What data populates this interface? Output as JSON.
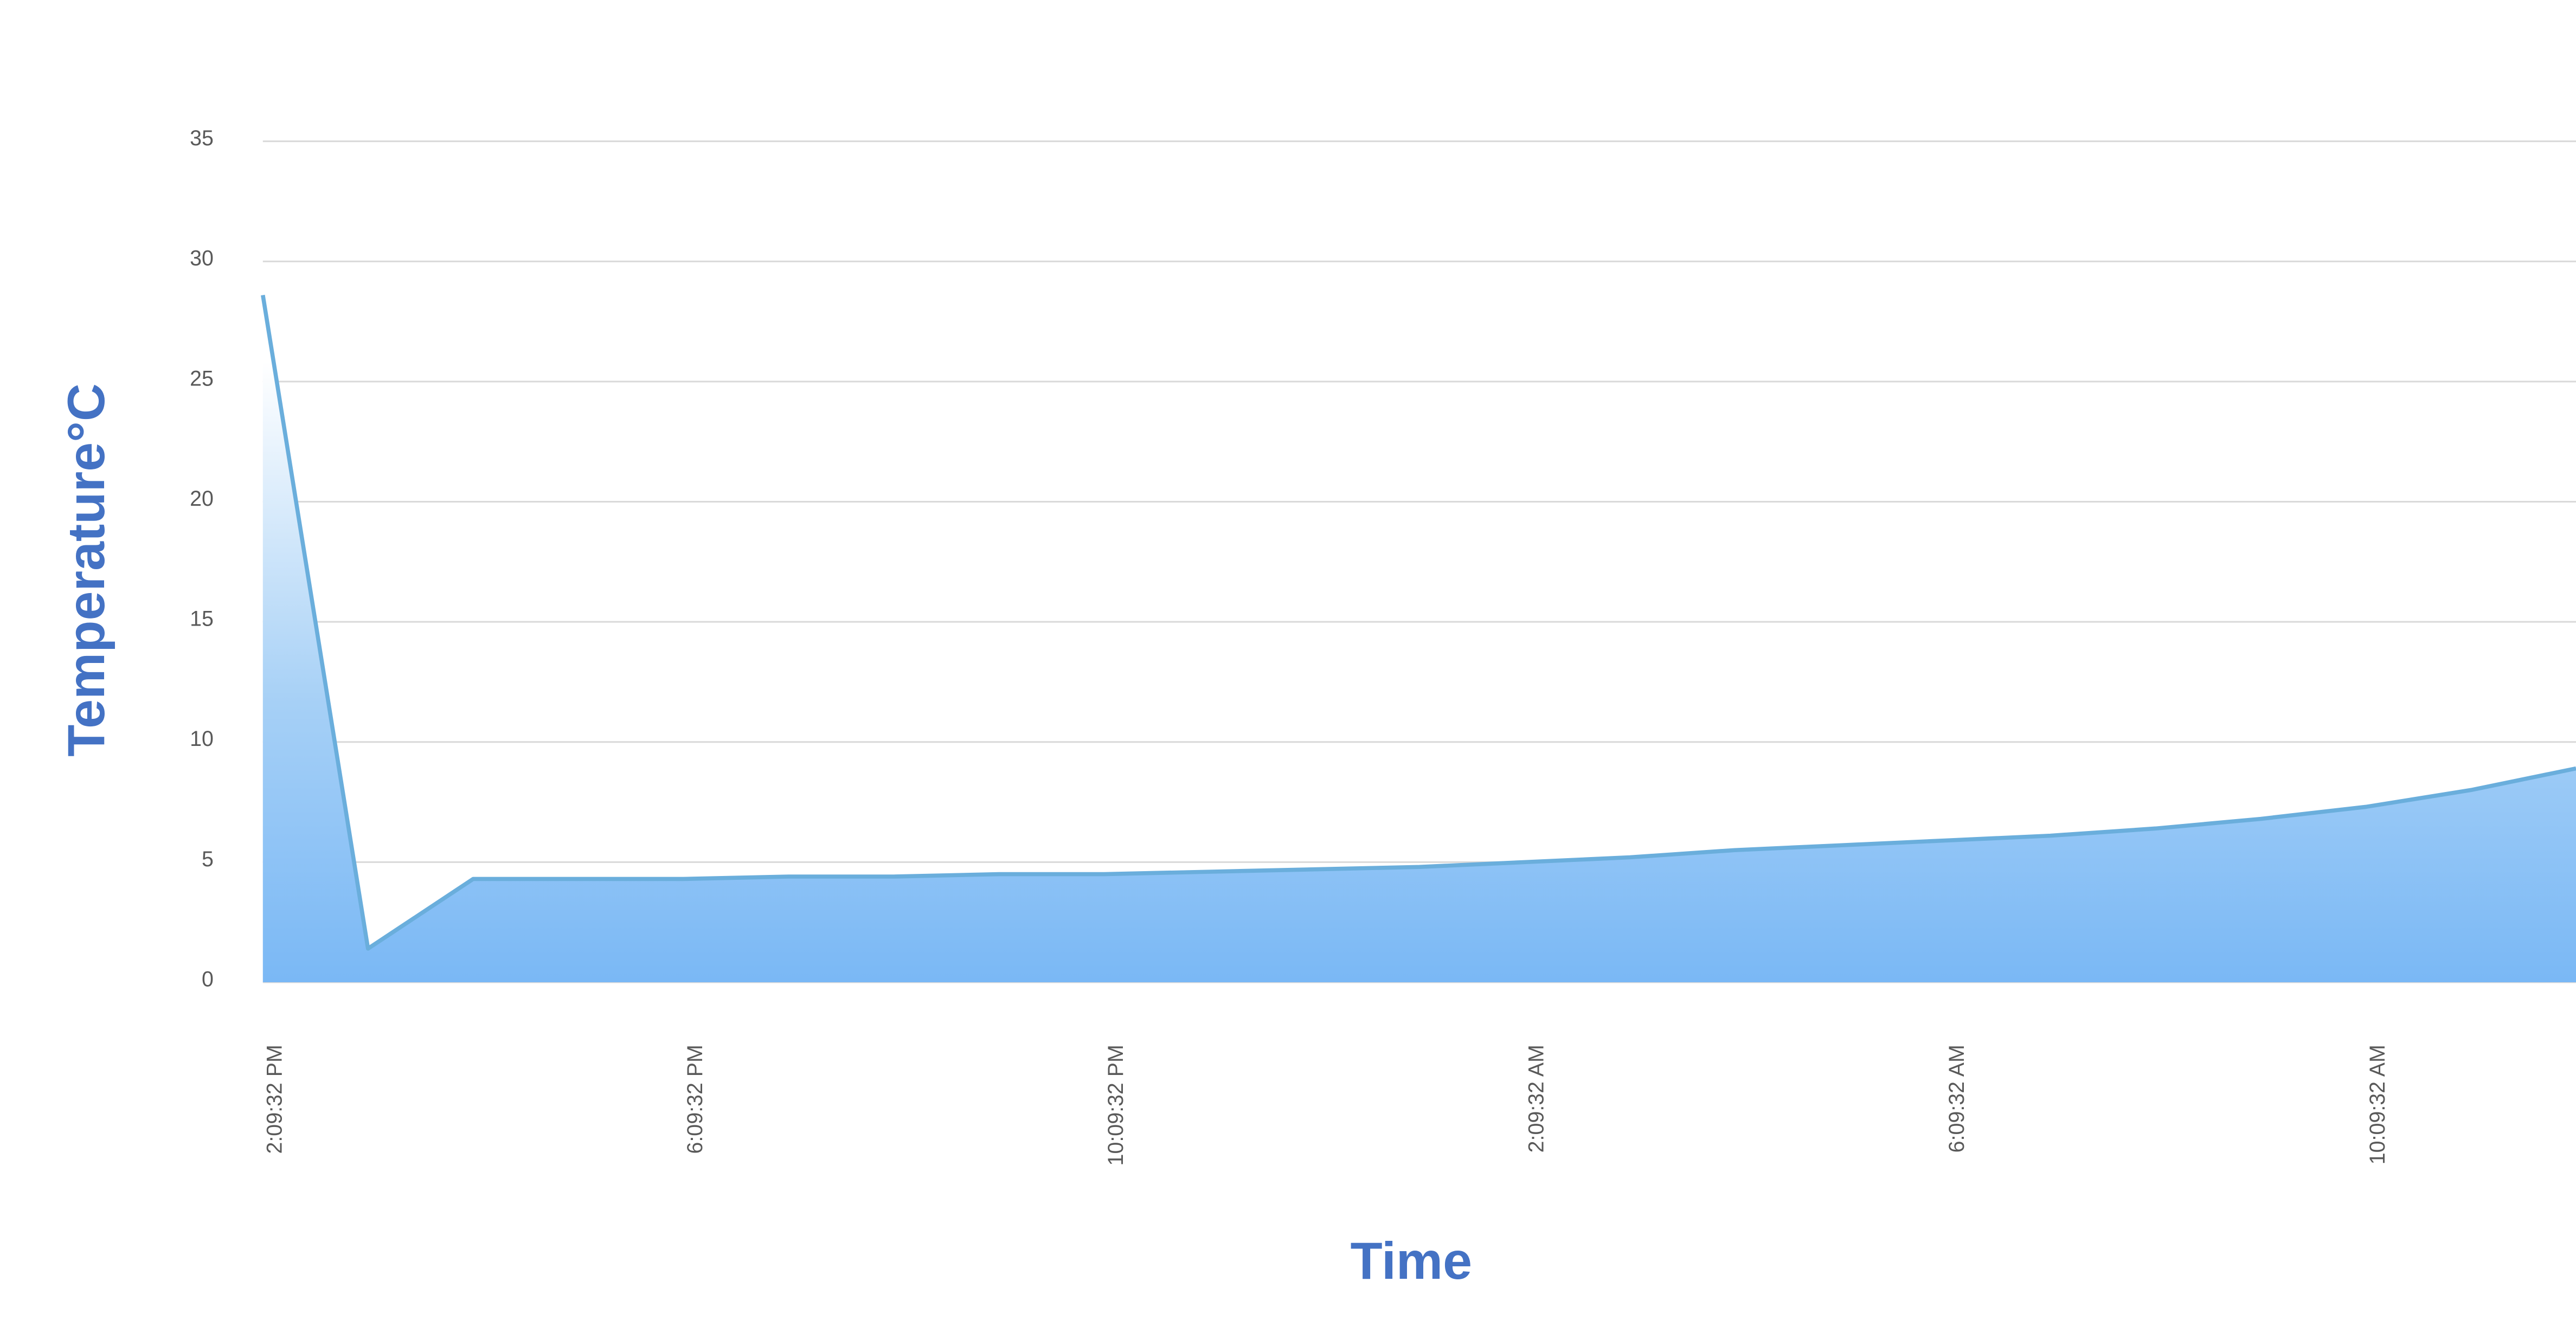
{
  "chart_data": {
    "type": "area",
    "y_label": "Temperature°C",
    "x_label": "Time",
    "categories": [
      "2:09:32 PM",
      null,
      null,
      null,
      "6:09:32 PM",
      null,
      null,
      null,
      "10:09:32 PM",
      null,
      null,
      null,
      "2:09:32 AM",
      null,
      null,
      null,
      "6:09:32 AM",
      null,
      null,
      null,
      "10:09:32 AM",
      null,
      null
    ],
    "series": [
      {
        "name": "Temperature",
        "color": "#6aaedc",
        "values": [
          28.6,
          1.4,
          4.3,
          4.3,
          4.3,
          4.4,
          4.4,
          4.5,
          4.5,
          4.6,
          4.7,
          4.8,
          5.0,
          5.2,
          5.5,
          5.7,
          5.9,
          6.1,
          6.4,
          6.8,
          7.3,
          8.0,
          8.9
        ]
      }
    ],
    "ylim": [
      0,
      35
    ],
    "yticks": [
      0,
      5,
      10,
      15,
      20,
      25,
      30,
      35
    ],
    "grid": true
  }
}
